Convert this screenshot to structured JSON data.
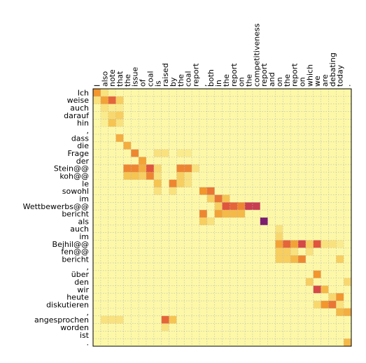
{
  "chart_data": {
    "type": "heatmap",
    "title": "",
    "xlabel": "",
    "ylabel": "",
    "x_labels": [
      "I",
      "also",
      "note",
      "that",
      "the",
      "issue",
      "of",
      "coal",
      "is",
      "raised",
      "by",
      "the",
      "coal",
      "report",
      ",",
      "both",
      "in",
      "the",
      "report",
      "on",
      "the",
      "competitiveness",
      "report",
      "and",
      "on",
      "the",
      "report",
      "on",
      "which",
      "we",
      "are",
      "debating",
      "today",
      "."
    ],
    "y_labels": [
      "Ich",
      "weise",
      "auch",
      "darauf",
      "hin",
      ",",
      "dass",
      "die",
      "Frage",
      "der",
      "Stein@@",
      "koh@@",
      "le",
      "sowohl",
      "im",
      "Wettbewerbs@@",
      "bericht",
      "als",
      "auch",
      "im",
      "Bejhil@@",
      "fen@@",
      "bericht",
      ",",
      "über",
      "den",
      "wir",
      "heute",
      "diskutieren",
      ",",
      "angesprochen",
      "worden",
      "ist",
      "."
    ],
    "grid": true,
    "colormap": "light yellow (low) to orange, red, purple (high)",
    "cells": [
      [
        0,
        0,
        0.55
      ],
      [
        0,
        1,
        0.2
      ],
      [
        0,
        2,
        0.1
      ],
      [
        1,
        0,
        0.2
      ],
      [
        1,
        1,
        0.5
      ],
      [
        1,
        2,
        0.7
      ],
      [
        1,
        3,
        0.3
      ],
      [
        2,
        1,
        0.2
      ],
      [
        2,
        2,
        0.15
      ],
      [
        2,
        3,
        0.15
      ],
      [
        3,
        1,
        0.15
      ],
      [
        3,
        2,
        0.25
      ],
      [
        3,
        3,
        0.3
      ],
      [
        4,
        1,
        0.12
      ],
      [
        4,
        2,
        0.35
      ],
      [
        4,
        3,
        0.2
      ],
      [
        6,
        3,
        0.45
      ],
      [
        7,
        4,
        0.45
      ],
      [
        8,
        5,
        0.6
      ],
      [
        8,
        8,
        0.2
      ],
      [
        8,
        9,
        0.2
      ],
      [
        8,
        11,
        0.15
      ],
      [
        8,
        12,
        0.15
      ],
      [
        9,
        6,
        0.5
      ],
      [
        10,
        4,
        0.6
      ],
      [
        10,
        5,
        0.6
      ],
      [
        10,
        6,
        0.45
      ],
      [
        10,
        7,
        0.75
      ],
      [
        10,
        8,
        0.25
      ],
      [
        10,
        11,
        0.6
      ],
      [
        10,
        12,
        0.6
      ],
      [
        10,
        13,
        0.2
      ],
      [
        11,
        4,
        0.35
      ],
      [
        11,
        5,
        0.35
      ],
      [
        11,
        6,
        0.3
      ],
      [
        11,
        7,
        0.6
      ],
      [
        11,
        8,
        0.2
      ],
      [
        11,
        11,
        0.3
      ],
      [
        11,
        12,
        0.2
      ],
      [
        12,
        8,
        0.35
      ],
      [
        12,
        10,
        0.6
      ],
      [
        12,
        11,
        0.3
      ],
      [
        12,
        12,
        0.2
      ],
      [
        13,
        8,
        0.2
      ],
      [
        13,
        10,
        0.2
      ],
      [
        13,
        14,
        0.55
      ],
      [
        13,
        15,
        0.65
      ],
      [
        14,
        15,
        0.3
      ],
      [
        14,
        16,
        0.65
      ],
      [
        14,
        17,
        0.35
      ],
      [
        15,
        16,
        0.3
      ],
      [
        15,
        17,
        0.75
      ],
      [
        15,
        18,
        0.7
      ],
      [
        15,
        19,
        0.6
      ],
      [
        15,
        20,
        0.85
      ],
      [
        15,
        21,
        0.85
      ],
      [
        16,
        14,
        0.6
      ],
      [
        16,
        16,
        0.5
      ],
      [
        16,
        17,
        0.4
      ],
      [
        16,
        18,
        0.4
      ],
      [
        16,
        19,
        0.4
      ],
      [
        17,
        14,
        0.3
      ],
      [
        17,
        15,
        0.2
      ],
      [
        17,
        22,
        1.0
      ],
      [
        18,
        24,
        0.2
      ],
      [
        19,
        24,
        0.25
      ],
      [
        20,
        24,
        0.5
      ],
      [
        20,
        25,
        0.7
      ],
      [
        20,
        26,
        0.5
      ],
      [
        20,
        27,
        0.8
      ],
      [
        20,
        28,
        0.3
      ],
      [
        20,
        29,
        0.75
      ],
      [
        20,
        30,
        0.2
      ],
      [
        20,
        31,
        0.2
      ],
      [
        20,
        32,
        0.15
      ],
      [
        21,
        24,
        0.3
      ],
      [
        21,
        25,
        0.3
      ],
      [
        21,
        26,
        0.2
      ],
      [
        21,
        28,
        0.2
      ],
      [
        22,
        24,
        0.3
      ],
      [
        22,
        25,
        0.3
      ],
      [
        22,
        26,
        0.4
      ],
      [
        22,
        27,
        0.6
      ],
      [
        22,
        32,
        0.3
      ],
      [
        24,
        29,
        0.55
      ],
      [
        25,
        28,
        0.3
      ],
      [
        25,
        33,
        0.25
      ],
      [
        26,
        29,
        0.8
      ],
      [
        26,
        30,
        0.4
      ],
      [
        27,
        31,
        0.25
      ],
      [
        27,
        32,
        0.55
      ],
      [
        28,
        29,
        0.25
      ],
      [
        28,
        30,
        0.55
      ],
      [
        28,
        31,
        0.65
      ],
      [
        28,
        32,
        0.2
      ],
      [
        29,
        32,
        0.4
      ],
      [
        29,
        33,
        0.45
      ],
      [
        30,
        1,
        0.2
      ],
      [
        30,
        2,
        0.2
      ],
      [
        30,
        3,
        0.2
      ],
      [
        30,
        9,
        0.7
      ],
      [
        30,
        10,
        0.35
      ],
      [
        31,
        9,
        0.2
      ],
      [
        33,
        33,
        0.4
      ]
    ],
    "base_level": 0.05
  }
}
